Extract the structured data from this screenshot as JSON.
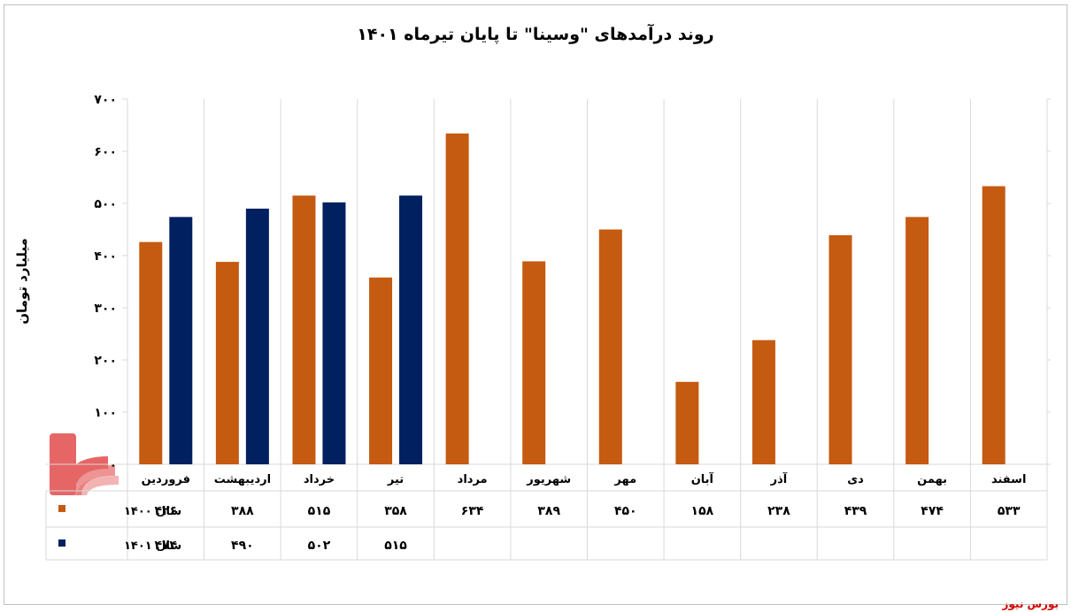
{
  "chart_data": {
    "type": "bar",
    "title": "روند درآمدهای \"وسینا\" تا پایان تیرماه ۱۴۰۱",
    "ylabel": "میلیارد تومان",
    "xlabel": "",
    "ylim": [
      0,
      700
    ],
    "yticks": [
      0,
      100,
      200,
      300,
      400,
      500,
      600,
      700
    ],
    "ytick_labels": [
      "۰",
      "۱۰۰",
      "۲۰۰",
      "۳۰۰",
      "۴۰۰",
      "۵۰۰",
      "۶۰۰",
      "۷۰۰"
    ],
    "grid": "vertical category gridlines",
    "legend": "data-table",
    "categories": [
      "فروردین",
      "اردیبهشت",
      "خرداد",
      "تیر",
      "مرداد",
      "شهریور",
      "مهر",
      "آبان",
      "آذر",
      "دی",
      "بهمن",
      "اسفند"
    ],
    "series": [
      {
        "name": "سال ۱۴۰۰",
        "color": "#c55a11",
        "values": [
          426,
          388,
          515,
          358,
          634,
          389,
          450,
          158,
          238,
          439,
          474,
          533
        ],
        "labels": [
          "۴۲۶",
          "۳۸۸",
          "۵۱۵",
          "۳۵۸",
          "۶۳۴",
          "۳۸۹",
          "۴۵۰",
          "۱۵۸",
          "۲۳۸",
          "۴۳۹",
          "۴۷۴",
          "۵۳۳"
        ]
      },
      {
        "name": "سال ۱۴۰۱",
        "color": "#002060",
        "values": [
          474,
          490,
          502,
          515,
          null,
          null,
          null,
          null,
          null,
          null,
          null,
          null
        ],
        "labels": [
          "۴۷۴",
          "۴۹۰",
          "۵۰۲",
          "۵۱۵",
          "",
          "",
          "",
          "",
          "",
          "",
          "",
          ""
        ]
      }
    ]
  },
  "source_label": "بورس نیوز",
  "colors": {
    "grid": "#d9d9d9",
    "logo": "#e04040"
  }
}
